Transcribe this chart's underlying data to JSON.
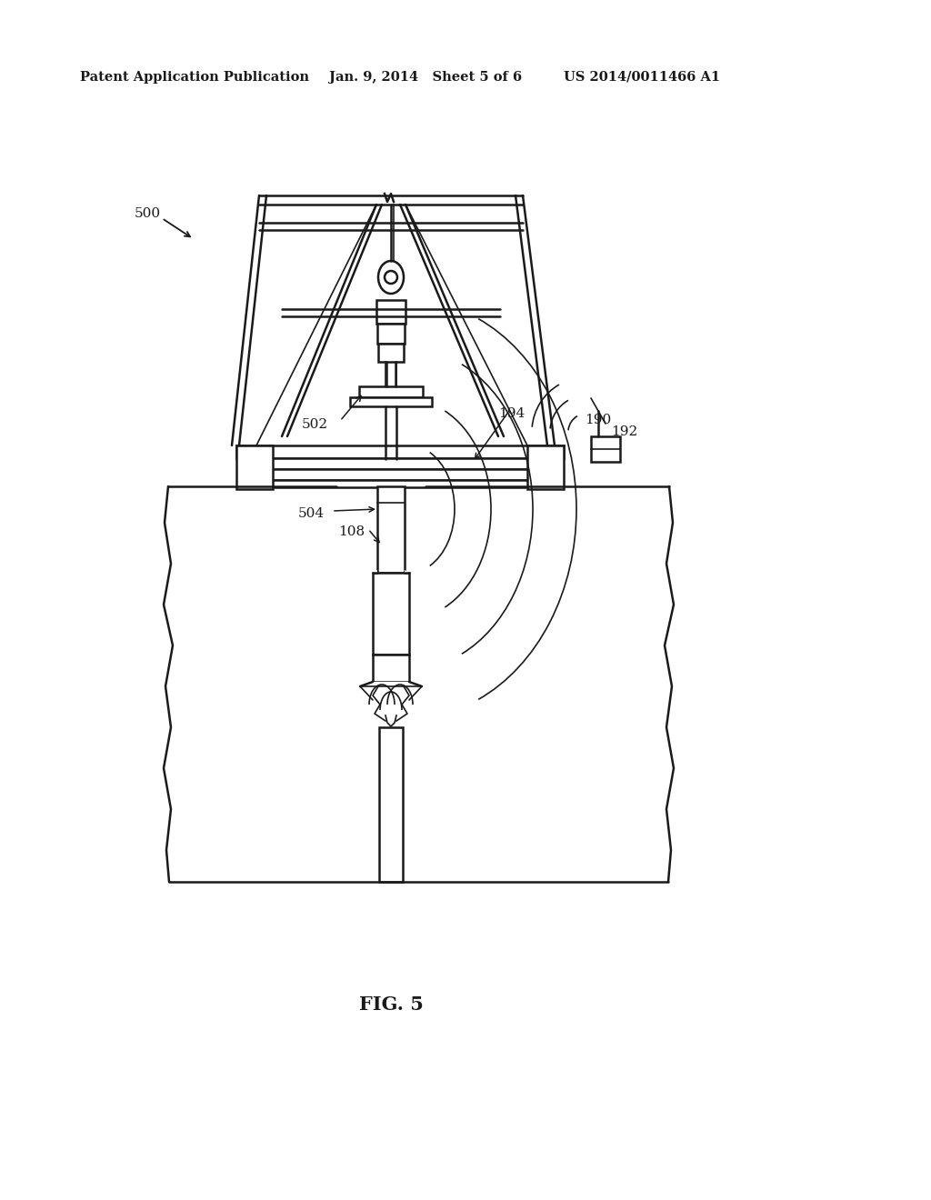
{
  "background_color": "#ffffff",
  "line_color": "#1a1a1a",
  "header_text_left": "Patent Application Publication",
  "header_text_mid": "Jan. 9, 2014   Sheet 5 of 6",
  "header_text_right": "US 2014/0011466 A1",
  "figure_label": "FIG. 5",
  "lw_thin": 1.2,
  "lw_med": 1.8,
  "lw_thick": 2.5
}
